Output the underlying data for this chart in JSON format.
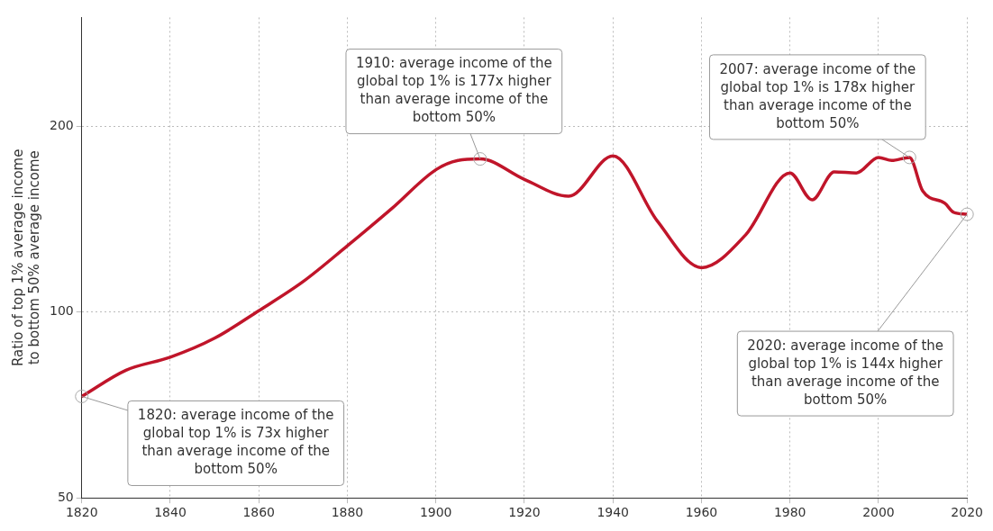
{
  "chart_data": {
    "type": "line",
    "ylabel": "Ratio of top 1% average income to bottom 50% average income",
    "x": [
      1820,
      1830,
      1840,
      1850,
      1860,
      1870,
      1880,
      1890,
      1900,
      1905,
      1910,
      1920,
      1930,
      1940,
      1950,
      1960,
      1970,
      1980,
      1985,
      1990,
      1995,
      2000,
      2003,
      2007,
      2010,
      2015,
      2017,
      2020
    ],
    "series": [
      {
        "color": "#c0152a",
        "values": [
          73,
          80.5,
          84.5,
          90.7,
          100.5,
          112,
          128,
          147,
          170,
          176,
          177,
          164,
          154,
          179,
          140.5,
          118,
          133.4,
          168,
          152,
          168.6,
          168,
          178,
          176,
          178,
          157,
          150,
          145,
          144
        ]
      }
    ],
    "xlim": [
      1820,
      2020
    ],
    "xticks": [
      1820,
      1840,
      1860,
      1880,
      1900,
      1920,
      1940,
      1960,
      1980,
      2000,
      2020
    ],
    "ylim": [
      50,
      300
    ],
    "yticks": [
      50,
      100,
      200
    ],
    "log": "y",
    "grid": true,
    "marker": "none",
    "line_style": "solid",
    "legend": false,
    "annotations": [
      {
        "text": "1820: average income of the global top 1% is 73x higher than average income of the bottom 50%",
        "x": 1820,
        "y": 73
      },
      {
        "text": "1910: average income of the global top 1% is 177x higher than average income of the bottom 50%",
        "x": 1910,
        "y": 177
      },
      {
        "text": "2007: average income of the global top 1% is 178x higher than average income of the bottom 50%",
        "x": 2007,
        "y": 178
      },
      {
        "text": "2020: average income of the global top 1% is 144x higher than average income of the bottom 50%",
        "x": 2020,
        "y": 144
      }
    ]
  }
}
